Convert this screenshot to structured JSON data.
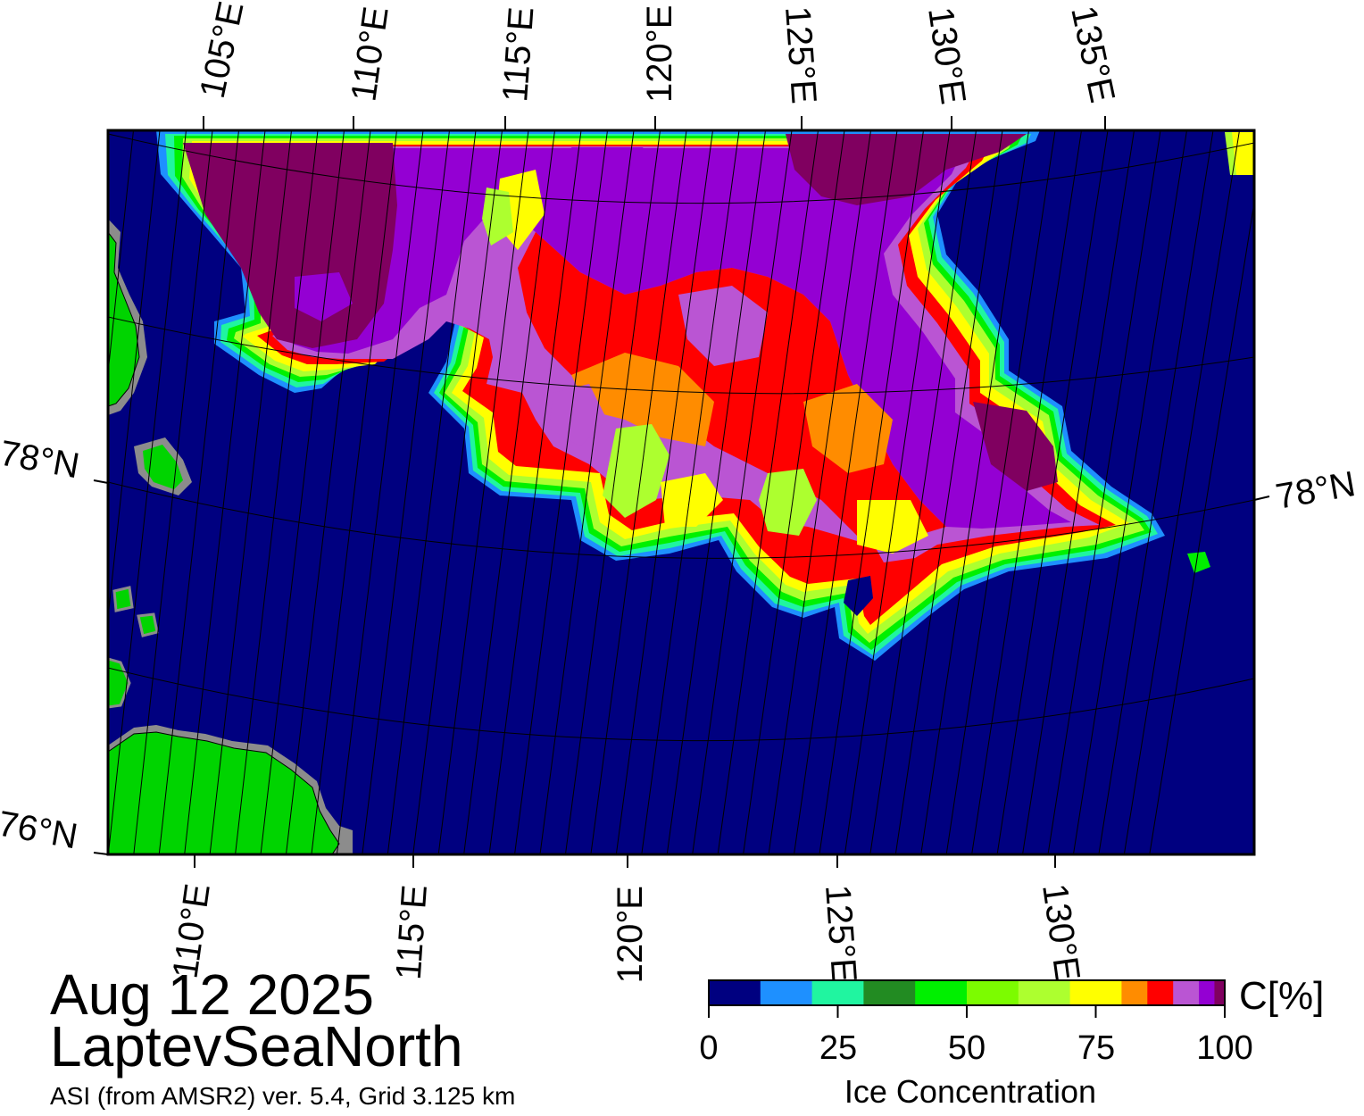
{
  "title": {
    "date": "Aug 12 2025",
    "region": "LaptevSeaNorth",
    "subtitle": "ASI (from AMSR2) ver. 5.4,  Grid 3.125 km"
  },
  "map": {
    "top_lon_labels": [
      "105°E",
      "110°E",
      "115°E",
      "120°E",
      "125°E",
      "130°E",
      "135°E"
    ],
    "bottom_lon_labels": [
      "110°E",
      "115°E",
      "120°E",
      "125°E",
      "130°E"
    ],
    "lat_labels": {
      "left_upper": "78°N",
      "left_lower": "76°N",
      "right": "78°N"
    },
    "colors": {
      "ocean": "#000080",
      "land": "#00d400",
      "coast_mask": "#8c8c8c"
    }
  },
  "colorbar": {
    "unit_label": "C[%]",
    "title": "Ice Concentration",
    "tick_labels": [
      "0",
      "25",
      "50",
      "75",
      "100"
    ],
    "colors": [
      "#000080",
      "#1e90ff",
      "#20f5a0",
      "#228b22",
      "#00f000",
      "#7cfc00",
      "#adff2f",
      "#ffff00",
      "#ff8c00",
      "#ff0000",
      "#ba55d3",
      "#9400d3",
      "#800060"
    ]
  }
}
